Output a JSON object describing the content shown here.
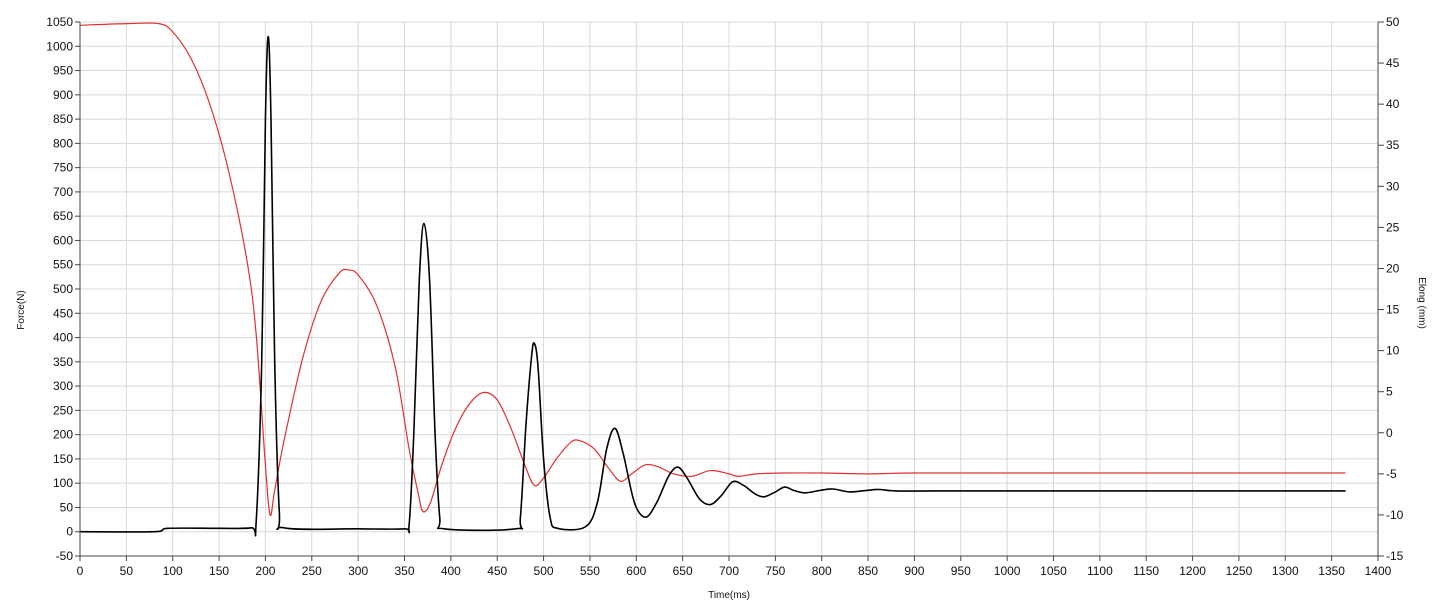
{
  "chart_data": {
    "type": "line",
    "xlabel": "Time(ms)",
    "ylabel": "Force(N)",
    "y2label": "Elong (mm)",
    "xlim": [
      0,
      1400
    ],
    "ylim": [
      -50,
      1050
    ],
    "y2lim": [
      -15,
      50
    ],
    "grid": true,
    "x_ticks": [
      "0",
      "50",
      "100",
      "150",
      "200",
      "250",
      "300",
      "350",
      "400",
      "450",
      "500",
      "550",
      "600",
      "650",
      "700",
      "750",
      "800",
      "850",
      "900",
      "950",
      "1000",
      "1050",
      "1100",
      "1150",
      "1200",
      "1250",
      "1300",
      "1350",
      "1400"
    ],
    "y_ticks": [
      "-50",
      "0",
      "50",
      "100",
      "150",
      "200",
      "250",
      "300",
      "350",
      "400",
      "450",
      "500",
      "550",
      "600",
      "650",
      "700",
      "750",
      "800",
      "850",
      "900",
      "950",
      "1000",
      "1050"
    ],
    "y2_ticks": [
      "-15",
      "-10",
      "-5",
      "0",
      "5",
      "10",
      "15",
      "20",
      "25",
      "30",
      "35",
      "40",
      "45",
      "50"
    ],
    "series": [
      {
        "axis": "left",
        "color": "#000000",
        "points": [
          [
            0,
            0
          ],
          [
            80,
            0
          ],
          [
            95,
            7
          ],
          [
            150,
            7
          ],
          [
            185,
            8
          ],
          [
            190,
            20
          ],
          [
            196,
            350
          ],
          [
            200,
            850
          ],
          [
            203,
            1020
          ],
          [
            206,
            850
          ],
          [
            210,
            350
          ],
          [
            215,
            40
          ],
          [
            220,
            8
          ],
          [
            300,
            6
          ],
          [
            350,
            6
          ],
          [
            355,
            15
          ],
          [
            360,
            200
          ],
          [
            366,
            520
          ],
          [
            371,
            635
          ],
          [
            377,
            520
          ],
          [
            383,
            200
          ],
          [
            388,
            30
          ],
          [
            393,
            6
          ],
          [
            470,
            6
          ],
          [
            475,
            30
          ],
          [
            481,
            220
          ],
          [
            487,
            360
          ],
          [
            490,
            388
          ],
          [
            494,
            340
          ],
          [
            500,
            150
          ],
          [
            507,
            30
          ],
          [
            515,
            7
          ],
          [
            545,
            10
          ],
          [
            558,
            60
          ],
          [
            568,
            170
          ],
          [
            577,
            213
          ],
          [
            586,
            160
          ],
          [
            598,
            60
          ],
          [
            610,
            30
          ],
          [
            622,
            60
          ],
          [
            635,
            115
          ],
          [
            645,
            133
          ],
          [
            655,
            110
          ],
          [
            668,
            68
          ],
          [
            680,
            56
          ],
          [
            692,
            75
          ],
          [
            704,
            103
          ],
          [
            716,
            95
          ],
          [
            728,
            78
          ],
          [
            738,
            72
          ],
          [
            750,
            82
          ],
          [
            760,
            92
          ],
          [
            770,
            85
          ],
          [
            782,
            80
          ],
          [
            798,
            85
          ],
          [
            812,
            88
          ],
          [
            830,
            82
          ],
          [
            848,
            85
          ],
          [
            862,
            87
          ],
          [
            880,
            84
          ],
          [
            920,
            84
          ],
          [
            1000,
            84
          ],
          [
            1100,
            84
          ],
          [
            1200,
            84
          ],
          [
            1300,
            84
          ],
          [
            1365,
            84
          ]
        ]
      },
      {
        "axis": "right",
        "color": "#e03030",
        "points": [
          [
            0,
            49.6
          ],
          [
            50,
            49.8
          ],
          [
            85,
            49.8
          ],
          [
            100,
            48.8
          ],
          [
            120,
            45.5
          ],
          [
            140,
            40
          ],
          [
            160,
            32
          ],
          [
            180,
            21
          ],
          [
            190,
            12
          ],
          [
            200,
            -4
          ],
          [
            205,
            -10
          ],
          [
            210,
            -7
          ],
          [
            220,
            -1
          ],
          [
            240,
            9
          ],
          [
            260,
            16
          ],
          [
            280,
            19.5
          ],
          [
            290,
            19.8
          ],
          [
            300,
            19.2
          ],
          [
            320,
            15.5
          ],
          [
            340,
            8
          ],
          [
            355,
            -2
          ],
          [
            365,
            -7.5
          ],
          [
            370,
            -9.6
          ],
          [
            378,
            -8.5
          ],
          [
            390,
            -4
          ],
          [
            405,
            0.5
          ],
          [
            420,
            3.5
          ],
          [
            435,
            4.9
          ],
          [
            450,
            4
          ],
          [
            465,
            0.5
          ],
          [
            480,
            -4
          ],
          [
            490,
            -6.4
          ],
          [
            500,
            -5.5
          ],
          [
            515,
            -3
          ],
          [
            530,
            -1.1
          ],
          [
            540,
            -1
          ],
          [
            555,
            -2
          ],
          [
            570,
            -4.3
          ],
          [
            583,
            -5.9
          ],
          [
            595,
            -5
          ],
          [
            610,
            -3.9
          ],
          [
            625,
            -4.2
          ],
          [
            640,
            -5
          ],
          [
            660,
            -5.3
          ],
          [
            680,
            -4.6
          ],
          [
            700,
            -5
          ],
          [
            710,
            -5.3
          ],
          [
            730,
            -5
          ],
          [
            760,
            -4.9
          ],
          [
            800,
            -4.9
          ],
          [
            850,
            -5
          ],
          [
            900,
            -4.9
          ],
          [
            1000,
            -4.9
          ],
          [
            1100,
            -4.9
          ],
          [
            1200,
            -4.9
          ],
          [
            1300,
            -4.9
          ],
          [
            1365,
            -4.9
          ]
        ]
      }
    ]
  }
}
